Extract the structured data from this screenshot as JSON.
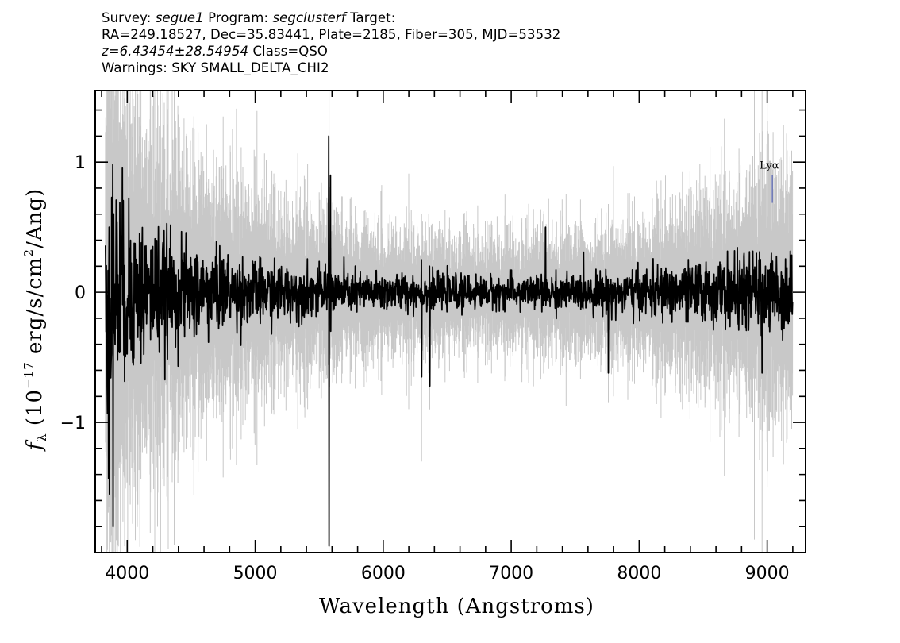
{
  "header": {
    "line1": {
      "survey_label": "Survey:",
      "survey": "segue1",
      "program_label": "Program:",
      "program": "segclusterf",
      "target_label": "Target:"
    },
    "line2": "RA=249.18527, Dec=35.83441, Plate=2185, Fiber=305, MJD=53532",
    "line3": {
      "z": "z=6.43454±28.54954",
      "class": "Class=QSO"
    },
    "line4": "Warnings: SKY SMALL_DELTA_CHI2"
  },
  "chart_data": {
    "type": "line",
    "xlabel": "Wavelength (Angstroms)",
    "ylabel": "f_λ (10^-17 erg/s/cm^2/Ang)",
    "xlim": [
      3750,
      9300
    ],
    "ylim": [
      -2.0,
      1.55
    ],
    "x_ticks": [
      4000,
      5000,
      6000,
      7000,
      8000,
      9000
    ],
    "y_ticks": [
      -1,
      0,
      1
    ],
    "x_tick_labels": [
      "4000",
      "5000",
      "6000",
      "7000",
      "8000",
      "9000"
    ],
    "y_tick_labels": [
      "−1",
      "0",
      "1"
    ],
    "grid": false,
    "series": [
      {
        "role": "error",
        "color": "#c8c8c8",
        "envelope": [
          [
            3830,
            1.6
          ],
          [
            3900,
            1.3
          ],
          [
            4100,
            1.0
          ],
          [
            4400,
            0.8
          ],
          [
            4800,
            0.6
          ],
          [
            5300,
            0.45
          ],
          [
            5800,
            0.35
          ],
          [
            6300,
            0.3
          ],
          [
            6800,
            0.28
          ],
          [
            7300,
            0.3
          ],
          [
            7800,
            0.33
          ],
          [
            8200,
            0.4
          ],
          [
            8600,
            0.5
          ],
          [
            8900,
            0.6
          ],
          [
            9200,
            0.7
          ]
        ],
        "spikes": [
          [
            3860,
            1.55,
            -2.0
          ],
          [
            3880,
            1.55,
            -2.0
          ],
          [
            5577,
            1.55,
            -2.0
          ],
          [
            6300,
            0.6,
            -1.3
          ],
          [
            6364,
            0.5,
            -0.9
          ],
          [
            8900,
            1.55,
            -1.9
          ],
          [
            8960,
            1.55,
            -2.0
          ],
          [
            9000,
            1.55,
            -1.5
          ]
        ]
      },
      {
        "role": "flux",
        "color": "#000000",
        "envelope": [
          [
            3830,
            0.9
          ],
          [
            3900,
            0.75
          ],
          [
            4100,
            0.5
          ],
          [
            4400,
            0.35
          ],
          [
            4800,
            0.25
          ],
          [
            5300,
            0.18
          ],
          [
            5800,
            0.14
          ],
          [
            6300,
            0.12
          ],
          [
            6800,
            0.11
          ],
          [
            7300,
            0.12
          ],
          [
            7800,
            0.14
          ],
          [
            8200,
            0.18
          ],
          [
            8600,
            0.22
          ],
          [
            8900,
            0.26
          ],
          [
            9200,
            0.3
          ]
        ],
        "spikes": [
          [
            3860,
            0.5,
            -1.55
          ],
          [
            3890,
            0.98,
            -1.8
          ],
          [
            5577,
            1.2,
            -1.95
          ],
          [
            5590,
            0.9,
            -0.3
          ],
          [
            6300,
            0.25,
            -0.65
          ],
          [
            6364,
            0.2,
            -0.72
          ],
          [
            7270,
            0.5,
            -0.1
          ],
          [
            7760,
            0.1,
            -0.62
          ],
          [
            8960,
            -0.1,
            -0.62
          ]
        ]
      }
    ],
    "annotations": [
      {
        "text": "Lyα",
        "x": 9040,
        "y": 0.9
      }
    ]
  }
}
